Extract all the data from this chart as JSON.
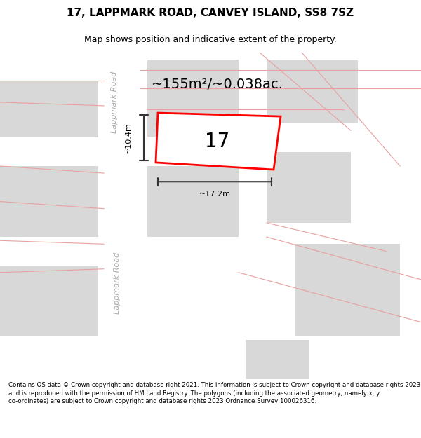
{
  "title": "17, LAPPMARK ROAD, CANVEY ISLAND, SS8 7SZ",
  "subtitle": "Map shows position and indicative extent of the property.",
  "footer": "Contains OS data © Crown copyright and database right 2021. This information is subject to Crown copyright and database rights 2023 and is reproduced with the permission of HM Land Registry. The polygons (including the associated geometry, namely x, y co-ordinates) are subject to Crown copyright and database rights 2023 Ordnance Survey 100026316.",
  "area_label": "~155m²/~0.038ac.",
  "width_label": "~17.2m",
  "height_label": "~10.4m",
  "property_number": "17",
  "bg_color": "#f0eeee",
  "map_bg": "#f5f4f4",
  "road_color": "#ffffff",
  "building_color": "#d8d8d8",
  "plot_line_color": "#ff0000",
  "dim_line_color": "#333333",
  "road_label_color": "#aaaaaa",
  "title_color": "#000000",
  "footer_color": "#000000",
  "pink_line_color": "#e8a0a0"
}
